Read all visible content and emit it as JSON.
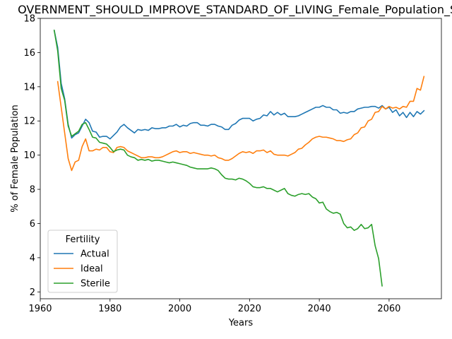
{
  "chart_data": {
    "type": "line",
    "title": "OVERNMENT_SHOULD_IMPROVE_STANDARD_OF_LIVING_Female_Population_So",
    "xlabel": "Years",
    "ylabel": "% of Female Population",
    "xlim": [
      1960,
      2075
    ],
    "ylim": [
      1.6,
      18.0
    ],
    "xticks": [
      1960,
      1980,
      2000,
      2020,
      2040,
      2060
    ],
    "yticks": [
      2,
      4,
      6,
      8,
      10,
      12,
      14,
      16,
      18
    ],
    "grid": false,
    "legend": {
      "title": "Fertility",
      "position": "lower-left"
    },
    "series": [
      {
        "name": "Actual",
        "color": "#1f77b4",
        "points": [
          [
            1964,
            17.3
          ],
          [
            1965,
            16.3
          ],
          [
            1966,
            14.2
          ],
          [
            1967,
            13.3
          ],
          [
            1968,
            11.8
          ],
          [
            1969,
            11.0
          ],
          [
            1970,
            11.2
          ],
          [
            1971,
            11.3
          ],
          [
            1972,
            11.7
          ],
          [
            1973,
            12.1
          ],
          [
            1974,
            11.9
          ],
          [
            1975,
            11.4
          ],
          [
            1976,
            11.35
          ],
          [
            1977,
            11.05
          ],
          [
            1978,
            11.1
          ],
          [
            1979,
            11.1
          ],
          [
            1980,
            10.95
          ],
          [
            1981,
            11.15
          ],
          [
            1982,
            11.35
          ],
          [
            1983,
            11.65
          ],
          [
            1984,
            11.8
          ],
          [
            1985,
            11.6
          ],
          [
            1986,
            11.45
          ],
          [
            1987,
            11.3
          ],
          [
            1988,
            11.5
          ],
          [
            1989,
            11.45
          ],
          [
            1990,
            11.5
          ],
          [
            1991,
            11.45
          ],
          [
            1992,
            11.6
          ],
          [
            1993,
            11.55
          ],
          [
            1994,
            11.55
          ],
          [
            1995,
            11.6
          ],
          [
            1996,
            11.6
          ],
          [
            1997,
            11.7
          ],
          [
            1998,
            11.7
          ],
          [
            1999,
            11.8
          ],
          [
            2000,
            11.65
          ],
          [
            2001,
            11.75
          ],
          [
            2002,
            11.7
          ],
          [
            2003,
            11.85
          ],
          [
            2004,
            11.9
          ],
          [
            2005,
            11.9
          ],
          [
            2006,
            11.75
          ],
          [
            2007,
            11.75
          ],
          [
            2008,
            11.7
          ],
          [
            2009,
            11.8
          ],
          [
            2010,
            11.8
          ],
          [
            2011,
            11.7
          ],
          [
            2012,
            11.65
          ],
          [
            2013,
            11.5
          ],
          [
            2014,
            11.5
          ],
          [
            2015,
            11.75
          ],
          [
            2016,
            11.85
          ],
          [
            2017,
            12.05
          ],
          [
            2018,
            12.15
          ],
          [
            2019,
            12.15
          ],
          [
            2020,
            12.15
          ],
          [
            2021,
            12.0
          ],
          [
            2022,
            12.1
          ],
          [
            2023,
            12.15
          ],
          [
            2024,
            12.35
          ],
          [
            2025,
            12.3
          ],
          [
            2026,
            12.55
          ],
          [
            2027,
            12.35
          ],
          [
            2028,
            12.5
          ],
          [
            2029,
            12.35
          ],
          [
            2030,
            12.45
          ],
          [
            2031,
            12.25
          ],
          [
            2032,
            12.25
          ],
          [
            2033,
            12.25
          ],
          [
            2034,
            12.3
          ],
          [
            2035,
            12.4
          ],
          [
            2036,
            12.5
          ],
          [
            2037,
            12.6
          ],
          [
            2038,
            12.7
          ],
          [
            2039,
            12.8
          ],
          [
            2040,
            12.8
          ],
          [
            2041,
            12.9
          ],
          [
            2042,
            12.8
          ],
          [
            2043,
            12.8
          ],
          [
            2044,
            12.65
          ],
          [
            2045,
            12.65
          ],
          [
            2046,
            12.45
          ],
          [
            2047,
            12.5
          ],
          [
            2048,
            12.45
          ],
          [
            2049,
            12.55
          ],
          [
            2050,
            12.55
          ],
          [
            2051,
            12.7
          ],
          [
            2052,
            12.75
          ],
          [
            2053,
            12.8
          ],
          [
            2054,
            12.8
          ],
          [
            2055,
            12.85
          ],
          [
            2056,
            12.85
          ],
          [
            2057,
            12.75
          ],
          [
            2058,
            12.9
          ],
          [
            2059,
            12.7
          ],
          [
            2060,
            12.8
          ],
          [
            2061,
            12.5
          ],
          [
            2062,
            12.65
          ],
          [
            2063,
            12.3
          ],
          [
            2064,
            12.5
          ],
          [
            2065,
            12.2
          ],
          [
            2066,
            12.5
          ],
          [
            2067,
            12.25
          ],
          [
            2068,
            12.55
          ],
          [
            2069,
            12.4
          ],
          [
            2070,
            12.6
          ]
        ]
      },
      {
        "name": "Ideal",
        "color": "#ff7f0e",
        "points": [
          [
            1965,
            14.3
          ],
          [
            1966,
            12.8
          ],
          [
            1967,
            11.3
          ],
          [
            1968,
            9.8
          ],
          [
            1969,
            9.1
          ],
          [
            1970,
            9.6
          ],
          [
            1971,
            9.7
          ],
          [
            1972,
            10.5
          ],
          [
            1973,
            10.95
          ],
          [
            1974,
            10.25
          ],
          [
            1975,
            10.25
          ],
          [
            1976,
            10.35
          ],
          [
            1977,
            10.3
          ],
          [
            1978,
            10.45
          ],
          [
            1979,
            10.45
          ],
          [
            1980,
            10.2
          ],
          [
            1981,
            10.15
          ],
          [
            1982,
            10.45
          ],
          [
            1983,
            10.5
          ],
          [
            1984,
            10.45
          ],
          [
            1985,
            10.25
          ],
          [
            1986,
            10.15
          ],
          [
            1987,
            10.05
          ],
          [
            1988,
            9.95
          ],
          [
            1989,
            9.85
          ],
          [
            1990,
            9.85
          ],
          [
            1991,
            9.9
          ],
          [
            1992,
            9.9
          ],
          [
            1993,
            9.85
          ],
          [
            1994,
            9.85
          ],
          [
            1995,
            9.9
          ],
          [
            1996,
            10.0
          ],
          [
            1997,
            10.1
          ],
          [
            1998,
            10.2
          ],
          [
            1999,
            10.25
          ],
          [
            2000,
            10.15
          ],
          [
            2001,
            10.2
          ],
          [
            2002,
            10.2
          ],
          [
            2003,
            10.1
          ],
          [
            2004,
            10.15
          ],
          [
            2005,
            10.1
          ],
          [
            2006,
            10.05
          ],
          [
            2007,
            10.0
          ],
          [
            2008,
            10.0
          ],
          [
            2009,
            9.95
          ],
          [
            2010,
            10.0
          ],
          [
            2011,
            9.85
          ],
          [
            2012,
            9.8
          ],
          [
            2013,
            9.7
          ],
          [
            2014,
            9.7
          ],
          [
            2015,
            9.8
          ],
          [
            2016,
            9.95
          ],
          [
            2017,
            10.1
          ],
          [
            2018,
            10.2
          ],
          [
            2019,
            10.15
          ],
          [
            2020,
            10.2
          ],
          [
            2021,
            10.1
          ],
          [
            2022,
            10.25
          ],
          [
            2023,
            10.25
          ],
          [
            2024,
            10.3
          ],
          [
            2025,
            10.15
          ],
          [
            2026,
            10.25
          ],
          [
            2027,
            10.05
          ],
          [
            2028,
            10.0
          ],
          [
            2029,
            10.0
          ],
          [
            2030,
            10.0
          ],
          [
            2031,
            9.95
          ],
          [
            2032,
            10.05
          ],
          [
            2033,
            10.15
          ],
          [
            2034,
            10.35
          ],
          [
            2035,
            10.4
          ],
          [
            2036,
            10.6
          ],
          [
            2037,
            10.75
          ],
          [
            2038,
            10.95
          ],
          [
            2039,
            11.05
          ],
          [
            2040,
            11.1
          ],
          [
            2041,
            11.05
          ],
          [
            2042,
            11.05
          ],
          [
            2043,
            11.0
          ],
          [
            2044,
            10.95
          ],
          [
            2045,
            10.85
          ],
          [
            2046,
            10.85
          ],
          [
            2047,
            10.8
          ],
          [
            2048,
            10.9
          ],
          [
            2049,
            10.95
          ],
          [
            2050,
            11.2
          ],
          [
            2051,
            11.3
          ],
          [
            2052,
            11.6
          ],
          [
            2053,
            11.65
          ],
          [
            2054,
            12.0
          ],
          [
            2055,
            12.1
          ],
          [
            2056,
            12.5
          ],
          [
            2057,
            12.55
          ],
          [
            2058,
            12.85
          ],
          [
            2059,
            12.7
          ],
          [
            2060,
            12.85
          ],
          [
            2061,
            12.75
          ],
          [
            2062,
            12.8
          ],
          [
            2063,
            12.7
          ],
          [
            2064,
            12.85
          ],
          [
            2065,
            12.8
          ],
          [
            2066,
            13.15
          ],
          [
            2067,
            13.15
          ],
          [
            2068,
            13.9
          ],
          [
            2069,
            13.8
          ],
          [
            2070,
            14.6
          ]
        ]
      },
      {
        "name": "Sterile",
        "color": "#2ca02c",
        "points": [
          [
            1964,
            17.3
          ],
          [
            1965,
            16.1
          ],
          [
            1966,
            13.9
          ],
          [
            1967,
            13.2
          ],
          [
            1968,
            11.7
          ],
          [
            1969,
            11.1
          ],
          [
            1970,
            11.25
          ],
          [
            1971,
            11.4
          ],
          [
            1972,
            11.8
          ],
          [
            1973,
            11.9
          ],
          [
            1974,
            11.5
          ],
          [
            1975,
            11.05
          ],
          [
            1976,
            11.0
          ],
          [
            1977,
            10.75
          ],
          [
            1978,
            10.7
          ],
          [
            1979,
            10.65
          ],
          [
            1980,
            10.45
          ],
          [
            1981,
            10.2
          ],
          [
            1982,
            10.3
          ],
          [
            1983,
            10.35
          ],
          [
            1984,
            10.3
          ],
          [
            1985,
            10.0
          ],
          [
            1986,
            9.9
          ],
          [
            1987,
            9.85
          ],
          [
            1988,
            9.7
          ],
          [
            1989,
            9.75
          ],
          [
            1990,
            9.7
          ],
          [
            1991,
            9.75
          ],
          [
            1992,
            9.65
          ],
          [
            1993,
            9.7
          ],
          [
            1994,
            9.7
          ],
          [
            1995,
            9.65
          ],
          [
            1996,
            9.6
          ],
          [
            1997,
            9.55
          ],
          [
            1998,
            9.6
          ],
          [
            1999,
            9.55
          ],
          [
            2000,
            9.5
          ],
          [
            2001,
            9.45
          ],
          [
            2002,
            9.4
          ],
          [
            2003,
            9.3
          ],
          [
            2004,
            9.25
          ],
          [
            2005,
            9.2
          ],
          [
            2006,
            9.2
          ],
          [
            2007,
            9.2
          ],
          [
            2008,
            9.2
          ],
          [
            2009,
            9.25
          ],
          [
            2010,
            9.2
          ],
          [
            2011,
            9.1
          ],
          [
            2012,
            8.85
          ],
          [
            2013,
            8.65
          ],
          [
            2014,
            8.6
          ],
          [
            2015,
            8.6
          ],
          [
            2016,
            8.55
          ],
          [
            2017,
            8.65
          ],
          [
            2018,
            8.6
          ],
          [
            2019,
            8.5
          ],
          [
            2020,
            8.35
          ],
          [
            2021,
            8.15
          ],
          [
            2022,
            8.1
          ],
          [
            2023,
            8.1
          ],
          [
            2024,
            8.15
          ],
          [
            2025,
            8.05
          ],
          [
            2026,
            8.05
          ],
          [
            2027,
            7.95
          ],
          [
            2028,
            7.85
          ],
          [
            2029,
            7.95
          ],
          [
            2030,
            8.05
          ],
          [
            2031,
            7.75
          ],
          [
            2032,
            7.65
          ],
          [
            2033,
            7.6
          ],
          [
            2034,
            7.7
          ],
          [
            2035,
            7.75
          ],
          [
            2036,
            7.7
          ],
          [
            2037,
            7.75
          ],
          [
            2038,
            7.55
          ],
          [
            2039,
            7.45
          ],
          [
            2040,
            7.2
          ],
          [
            2041,
            7.25
          ],
          [
            2042,
            6.85
          ],
          [
            2043,
            6.7
          ],
          [
            2044,
            6.6
          ],
          [
            2045,
            6.65
          ],
          [
            2046,
            6.55
          ],
          [
            2047,
            6.0
          ],
          [
            2048,
            5.75
          ],
          [
            2049,
            5.8
          ],
          [
            2050,
            5.6
          ],
          [
            2051,
            5.7
          ],
          [
            2052,
            5.95
          ],
          [
            2053,
            5.7
          ],
          [
            2054,
            5.75
          ],
          [
            2055,
            5.95
          ],
          [
            2056,
            4.7
          ],
          [
            2057,
            3.95
          ],
          [
            2058,
            2.35
          ]
        ]
      }
    ]
  }
}
